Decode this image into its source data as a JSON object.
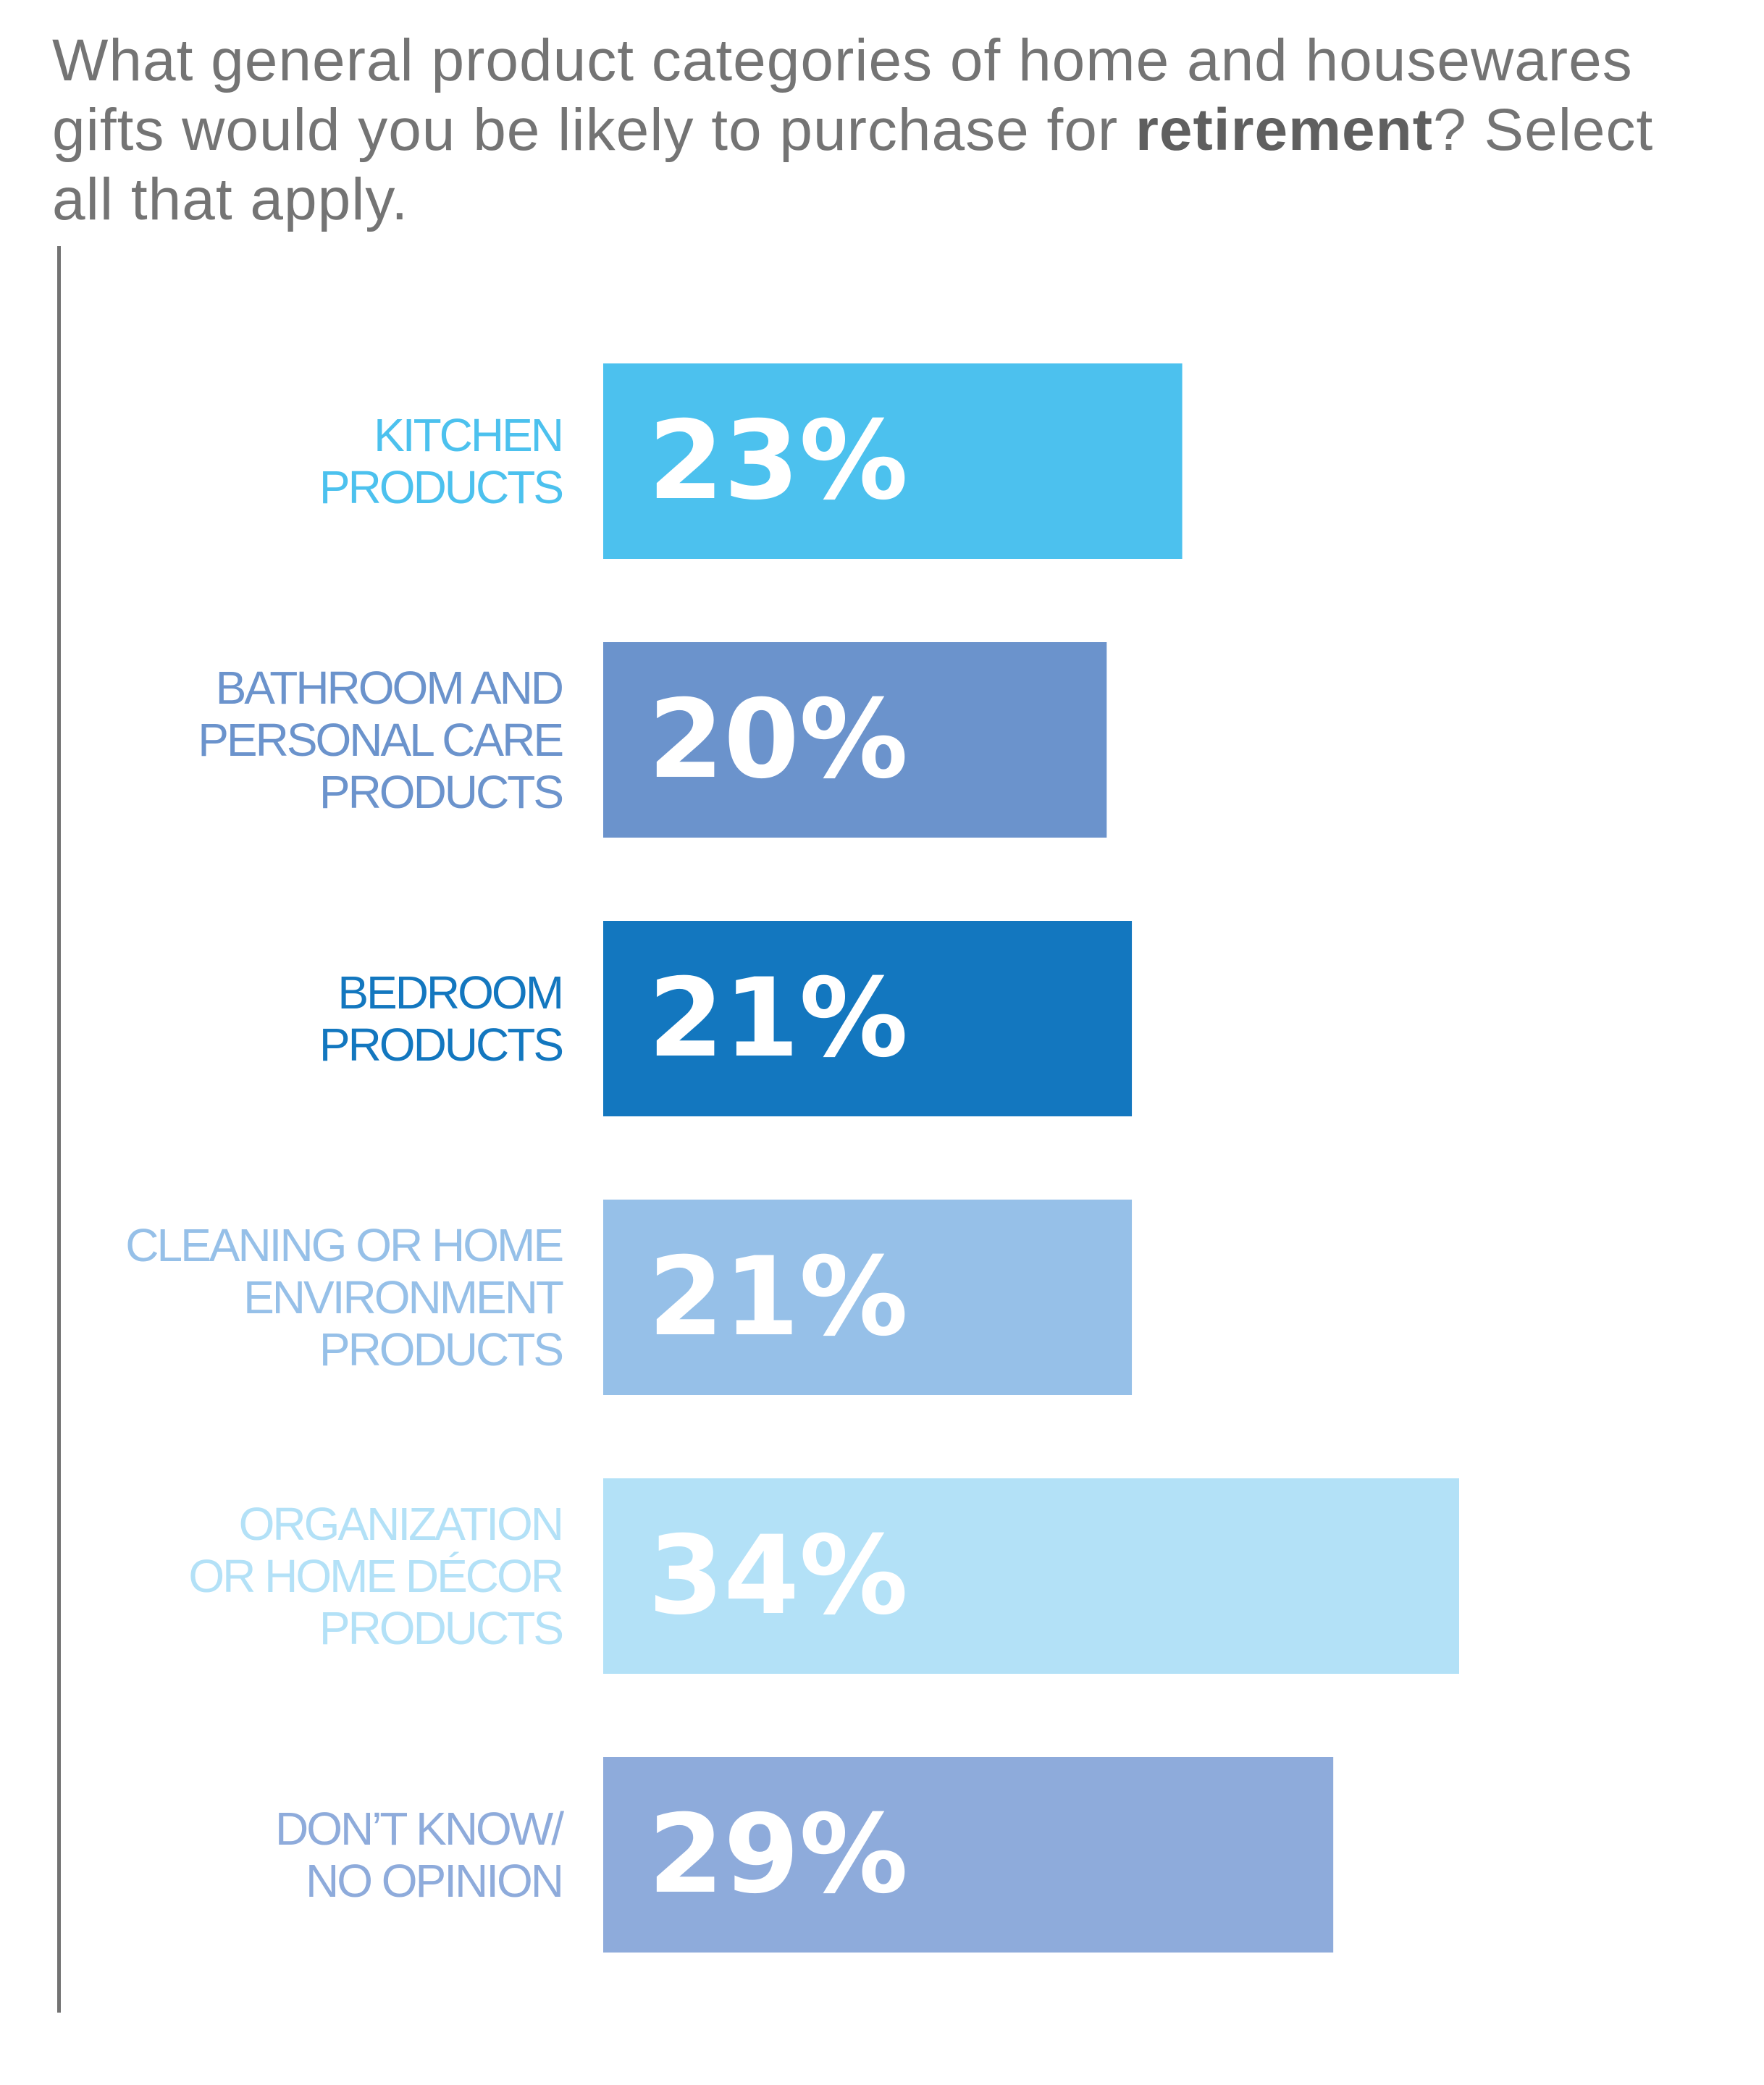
{
  "title": {
    "before": "What general product categories of home and housewares gifts would you be likely to purchase for ",
    "bold": "retirement",
    "after": "? Select all that apply."
  },
  "chart_data": {
    "type": "bar",
    "orientation": "horizontal",
    "title": "What general product categories of home and housewares gifts would you be likely to purchase for retirement? Select all that apply.",
    "categories": [
      [
        "KITCHEN",
        "PRODUCTS"
      ],
      [
        "BATHROOM AND",
        "PERSONAL CARE",
        "PRODUCTS"
      ],
      [
        "BEDROOM",
        "PRODUCTS"
      ],
      [
        "CLEANING OR HOME",
        "ENVIRONMENT",
        "PRODUCTS"
      ],
      [
        "ORGANIZATION",
        "OR HOME DÉCOR",
        "PRODUCTS"
      ],
      [
        "DON’T KNOW/",
        "NO OPINION"
      ]
    ],
    "values": [
      23,
      20,
      21,
      21,
      34,
      29
    ],
    "value_labels": [
      "23%",
      "20%",
      "21%",
      "21%",
      "34%",
      "29%"
    ],
    "unit": "%",
    "xlim": [
      0,
      34
    ],
    "colors": [
      "#4cc1ee",
      "#6b93cc",
      "#1377bf",
      "#96c0e8",
      "#b3e1f7",
      "#8eabdb"
    ],
    "label_colors": [
      "#4cc1ee",
      "#6b93cc",
      "#1377bf",
      "#96c0e8",
      "#b3e1f7",
      "#8eabdb"
    ],
    "grid": false,
    "legend": "none"
  }
}
